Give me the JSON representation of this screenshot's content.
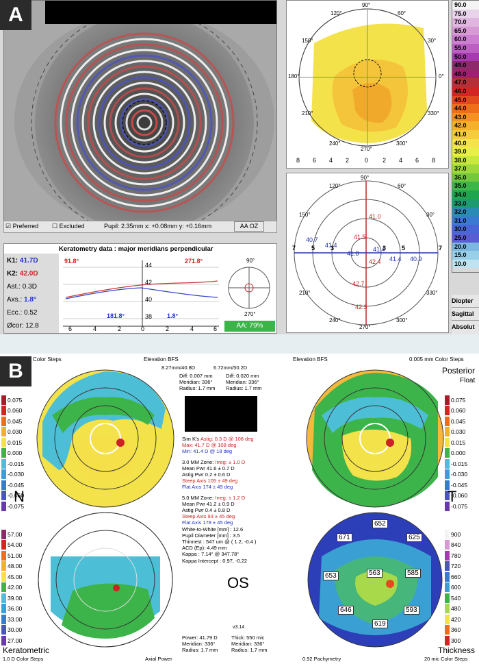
{
  "panel_a": {
    "badge": "A",
    "checkbox_preferred": "Preferred",
    "checkbox_excluded": "Excluded",
    "pupil_info": "Pupil: 2.35mm x: +0.08mm y: +0.16mm",
    "button_aa_oz": "AA OZ",
    "keratometry_title": "Keratometry data : major meridians perpendicular",
    "k1_label": "K1:",
    "k1_value": "41.7D",
    "k2_label": "K2:",
    "k2_value": "42.0D",
    "ast_label": "Ast.:",
    "ast_value": "0.3D",
    "axs_label": "Axs.:",
    "axs_value": "1.8°",
    "ecc_label": "Ecc.:",
    "ecc_value": "0.52",
    "cor_label": "Øcor:",
    "cor_value": "12.8",
    "graph_red_left": "91.8°",
    "graph_red_right": "271.8°",
    "graph_blue_left": "181.8°",
    "graph_blue_right": "1.8°",
    "graph_y_ticks": [
      "44",
      "42",
      "40",
      "38"
    ],
    "graph_x_ticks": [
      "6",
      "4",
      "2",
      "0",
      "2",
      "4",
      "6"
    ],
    "mini_top": "90°",
    "mini_bottom": "270°",
    "aa_value": "AA: 79%",
    "map_ticks_x": [
      "8",
      "6",
      "4",
      "2",
      "0",
      "2",
      "4",
      "6",
      "8"
    ],
    "map_angles": {
      "a90": "90°",
      "a120": "120°",
      "a60": "60°",
      "a150": "150°",
      "a30": "30°",
      "a180": "180°",
      "a0": "0°",
      "a210": "210°",
      "a330": "330°",
      "a240": "240°",
      "a300": "300°",
      "a270": "270°"
    },
    "radial": {
      "v41_0": "41.0",
      "v41_5": "41.5",
      "v40_7": "40.7",
      "v41_4a": "41.4",
      "v41_8": "41.8",
      "v41_4b": "41.4",
      "v41_4c": "41.4",
      "v40_9": "40.9",
      "v42_4": "42.4",
      "v42_7": "42.7",
      "v42_3": "42.3",
      "r7l": "7",
      "r5l": "5",
      "r3l": "3",
      "r3r": "3",
      "r5r": "5",
      "r7r": "7"
    },
    "colorbar": [
      "90.0",
      "75.0",
      "70.0",
      "65.0",
      "60.0",
      "55.0",
      "50.0",
      "49.0",
      "48.0",
      "47.0",
      "46.0",
      "45.0",
      "44.0",
      "43.0",
      "42.0",
      "41.0",
      "40.0",
      "39.0",
      "38.0",
      "37.0",
      "36.0",
      "35.0",
      "34.0",
      "33.0",
      "32.0",
      "31.0",
      "30.0",
      "25.0",
      "20.0",
      "15.0",
      "10.0"
    ],
    "colorbar_colors": [
      "#f4f4f4",
      "#e9d3ea",
      "#e0b5e0",
      "#d79ad5",
      "#cc7ed0",
      "#bd60c4",
      "#a73aae",
      "#8c2a6c",
      "#a0206a",
      "#b6303a",
      "#d42525",
      "#e34a1e",
      "#f06e1a",
      "#f49120",
      "#f6b12a",
      "#f4cc3c",
      "#f4e34a",
      "#e8ef47",
      "#c8e83c",
      "#9fd83b",
      "#74c83c",
      "#3cb54a",
      "#20a54f",
      "#1d9a6e",
      "#2a8bb5",
      "#3a7ad3",
      "#4a66d6",
      "#5a5cd1",
      "#7bb7e0",
      "#98d0ea",
      "#bfe3f0"
    ],
    "footer_labels": [
      "Diopter",
      "Sagittal",
      "Absolut"
    ]
  },
  "panel_b": {
    "badge": "B",
    "top_left_header": "Color Steps",
    "elevation_bfs_left": "Elevation BFS",
    "elevation_bfs_right": "Elevation BFS",
    "bfs_left_val": "8.27mm/40.8D",
    "bfs_right_val": "6.72mm/50.2D",
    "top_right_header": "0.005 mm Color Steps",
    "posterior": "Posterior",
    "float": "Float",
    "diff_left": {
      "diff_l": "Diff:",
      "diff_v": "0.007 mm",
      "mer_l": "Meridian:",
      "mer_v": "336°",
      "rad_l": "Radius:",
      "rad_v": "1.7 mm"
    },
    "diff_right": {
      "diff_l": "Diff:",
      "diff_v": "0.020 mm",
      "mer_l": "Meridian:",
      "mer_v": "336°",
      "rad_l": "Radius:",
      "rad_v": "1.7 mm"
    },
    "elev_scale": [
      "0.075",
      "0.060",
      "0.045",
      "0.030",
      "0.015",
      "0.000",
      "-0.015",
      "-0.030",
      "-0.045",
      "-0.060",
      "-0.075"
    ],
    "kera_scale": [
      "57.00",
      "54.00",
      "51.00",
      "48.00",
      "45.00",
      "42.00",
      "39.00",
      "36.00",
      "33.00",
      "30.00",
      "27.00"
    ],
    "pachy_scale": [
      "900",
      "840",
      "780",
      "720",
      "660",
      "600",
      "540",
      "480",
      "420",
      "360",
      "300"
    ],
    "letter_n": "N",
    "letter_t": "T",
    "os": "OS",
    "version": "v3.14",
    "sim_k": {
      "label": "Sim K's",
      "astig": "Astig:",
      "astig_v": "0.3 D",
      "astig_d": "@ 108 deg",
      "max": "Max:",
      "max_v": "41.7 D",
      "max_d": "@ 108 deg",
      "min": "Min:",
      "min_v": "41.4 D",
      "min_d": "@ 18 deg"
    },
    "zone3": {
      "title": "3.0 MM Zone:",
      "irreg": "Irreg:",
      "irreg_v": "± 1.0 D",
      "mean": "Mean Pwr",
      "mean_v": "41.6",
      "mean_d": "± 0.7 D",
      "astig": "Astig Pwr",
      "astig_v": "0.2",
      "astig_d": "± 0.6 D",
      "steep": "Steep Axis",
      "steep_v": "105",
      "steep_d": "± 49 deg",
      "flat": "Flat Axis",
      "flat_v": "174",
      "flat_d": "± 49 deg"
    },
    "zone5": {
      "title": "5.0 MM Zone:",
      "irreg": "Irreg:",
      "irreg_v": "± 1.2 D",
      "mean": "Mean Pwr",
      "mean_v": "41.2",
      "mean_d": "± 0.9 D",
      "astig": "Astig Pwr",
      "astig_v": "0.4",
      "astig_d": "± 0.8 D",
      "steep": "Steep Axis",
      "steep_v": "93",
      "steep_d": "± 45 deg",
      "flat": "Flat Axis",
      "flat_v": "178",
      "flat_d": "± 45 deg"
    },
    "extra": [
      "White-to-White [mm] : 12.6",
      "Pupil Diameter [mm] : 3.5",
      "Thinnest : 547 um @ ( 1.2, -0.4 )",
      "ACD (Ep): 4.49 mm",
      "Kappa : 7.14° @ 347.78°",
      "Kappa Intercept : 0.97, -0.22"
    ],
    "pachy_values": {
      "p671": "671",
      "p652": "652",
      "p625": "625",
      "p653": "653",
      "p563": "563",
      "p585": "585",
      "p646": "646",
      "p593": "593",
      "p619": "619"
    },
    "bottom": {
      "power": "Power:",
      "power_v": "41.79 D",
      "mer": "Meridian:",
      "mer_v": "336°",
      "rad": "Radius:",
      "rad_v": "1.7 mm",
      "thick": "Thick:",
      "thick_v": "550 mic",
      "mer2": "Meridian:",
      "mer2_v": "336°",
      "rad2": "Radius:",
      "rad2_v": "1.7 mm"
    },
    "keratometric": "Keratometric",
    "kera_steps": "1.0 D Color Steps",
    "axial_power": "Axial Power",
    "pachymetry": "0.92 Pachymetry",
    "thickness": "Thickness",
    "thick_steps": "20 mic Color Steps"
  }
}
